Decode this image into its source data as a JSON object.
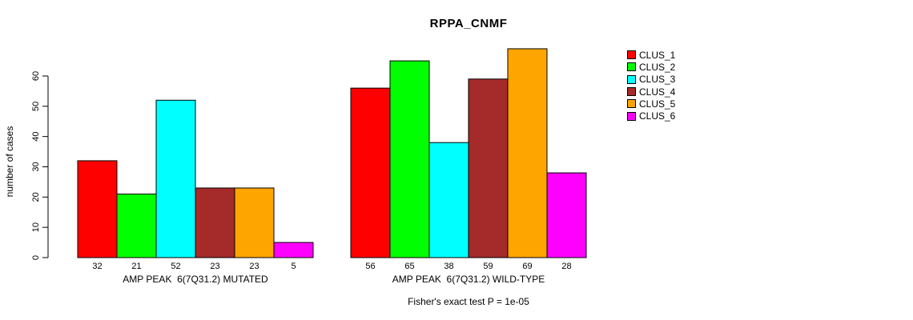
{
  "chart_data": {
    "type": "bar",
    "title": "RPPA_CNMF",
    "ylabel": "number of cases",
    "xlabel": "",
    "ylim": [
      0,
      69
    ],
    "yticks": [
      0,
      10,
      20,
      30,
      40,
      50,
      60
    ],
    "grid": false,
    "legend_position": "right",
    "annotation": "Fisher's exact test P = 1e-05",
    "categories": [
      "AMP PEAK  6(7Q31.2) MUTATED",
      "AMP PEAK  6(7Q31.2) WILD-TYPE"
    ],
    "series": [
      {
        "name": "CLUS_1",
        "color": "#FF0000",
        "values": [
          32,
          56
        ]
      },
      {
        "name": "CLUS_2",
        "color": "#00FF00",
        "values": [
          21,
          65
        ]
      },
      {
        "name": "CLUS_3",
        "color": "#00FFFF",
        "values": [
          52,
          38
        ]
      },
      {
        "name": "CLUS_4",
        "color": "#A52A2A",
        "values": [
          23,
          59
        ]
      },
      {
        "name": "CLUS_5",
        "color": "#FFA500",
        "values": [
          23,
          69
        ]
      },
      {
        "name": "CLUS_6",
        "color": "#FF00FF",
        "values": [
          5,
          28
        ]
      }
    ],
    "bar_value_labels_shown": true,
    "colors": {
      "background": "#FFFFFF",
      "axis": "#000000",
      "bar_outline": "#000000",
      "text": "#000000"
    }
  }
}
